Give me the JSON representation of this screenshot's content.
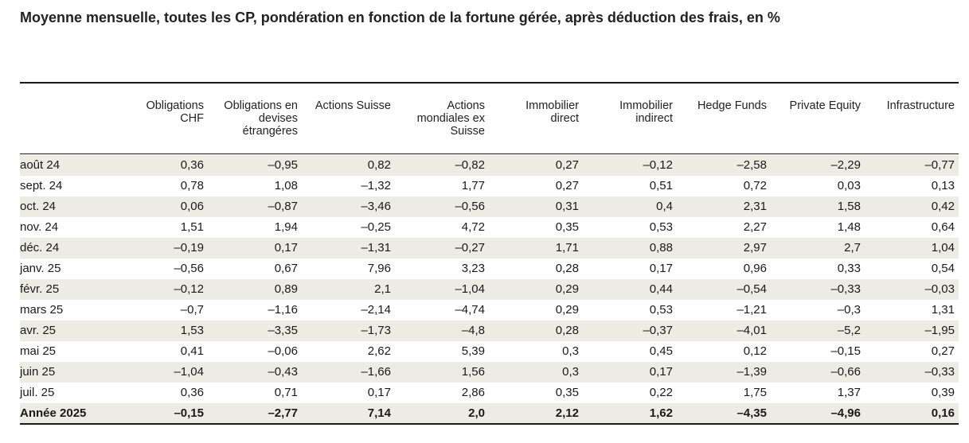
{
  "title": "Moyenne mensuelle, toutes les CP, pondération en fonction de la fortune gérée, après déduction des frais, en %",
  "columns": [
    [
      "Obligations",
      "CHF"
    ],
    [
      "Obligations en",
      "devises",
      "étrangéres"
    ],
    [
      "Actions Suisse"
    ],
    [
      "Actions",
      "mondiales ex",
      "Suisse"
    ],
    [
      "Immobilier",
      "direct"
    ],
    [
      "Immobilier",
      "indirect"
    ],
    [
      "Hedge Funds"
    ],
    [
      "Private Equity"
    ],
    [
      "Infrastructure"
    ]
  ],
  "rows": [
    {
      "label": "août 24",
      "values": [
        "0,36",
        "–0,95",
        "0,82",
        "–0,82",
        "0,27",
        "–0,12",
        "–2,58",
        "–2,29",
        "–0,77"
      ]
    },
    {
      "label": "sept. 24",
      "values": [
        "0,78",
        "1,08",
        "–1,32",
        "1,77",
        "0,27",
        "0,51",
        "0,72",
        "0,03",
        "0,13"
      ]
    },
    {
      "label": "oct. 24",
      "values": [
        "0,06",
        "–0,87",
        "–3,46",
        "–0,56",
        "0,31",
        "0,4",
        "2,31",
        "1,58",
        "0,42"
      ]
    },
    {
      "label": "nov. 24",
      "values": [
        "1,51",
        "1,94",
        "–0,25",
        "4,72",
        "0,35",
        "0,53",
        "2,27",
        "1,48",
        "0,64"
      ]
    },
    {
      "label": "déc. 24",
      "values": [
        "–0,19",
        "0,17",
        "–1,31",
        "–0,27",
        "1,71",
        "0,88",
        "2,97",
        "2,7",
        "1,04"
      ]
    },
    {
      "label": "janv. 25",
      "values": [
        "–0,56",
        "0,67",
        "7,96",
        "3,23",
        "0,28",
        "0,17",
        "0,96",
        "0,33",
        "0,54"
      ]
    },
    {
      "label": "févr. 25",
      "values": [
        "–0,12",
        "0,89",
        "2,1",
        "–1,04",
        "0,29",
        "0,44",
        "–0,54",
        "–0,33",
        "–0,03"
      ]
    },
    {
      "label": "mars 25",
      "values": [
        "–0,7",
        "–1,16",
        "–2,14",
        "–4,74",
        "0,29",
        "0,53",
        "–1,21",
        "–0,3",
        "1,31"
      ]
    },
    {
      "label": "avr. 25",
      "values": [
        "1,53",
        "–3,35",
        "–1,73",
        "–4,8",
        "0,28",
        "–0,37",
        "–4,01",
        "–5,2",
        "–1,95"
      ]
    },
    {
      "label": "mai 25",
      "values": [
        "0,41",
        "–0,06",
        "2,62",
        "5,39",
        "0,3",
        "0,45",
        "0,12",
        "–0,15",
        "0,27"
      ]
    },
    {
      "label": "juin 25",
      "values": [
        "–1,04",
        "–0,43",
        "–1,66",
        "1,56",
        "0,3",
        "0,17",
        "–1,39",
        "–0,66",
        "–0,33"
      ]
    },
    {
      "label": "juil. 25",
      "values": [
        "0,36",
        "0,71",
        "0,17",
        "2,86",
        "0,35",
        "0,22",
        "1,75",
        "1,37",
        "0,39"
      ]
    }
  ],
  "total": {
    "label": "Année 2025",
    "values": [
      "–0,15",
      "–2,77",
      "7,14",
      "2,0",
      "2,12",
      "1,62",
      "–4,35",
      "–4,96",
      "0,16"
    ]
  }
}
